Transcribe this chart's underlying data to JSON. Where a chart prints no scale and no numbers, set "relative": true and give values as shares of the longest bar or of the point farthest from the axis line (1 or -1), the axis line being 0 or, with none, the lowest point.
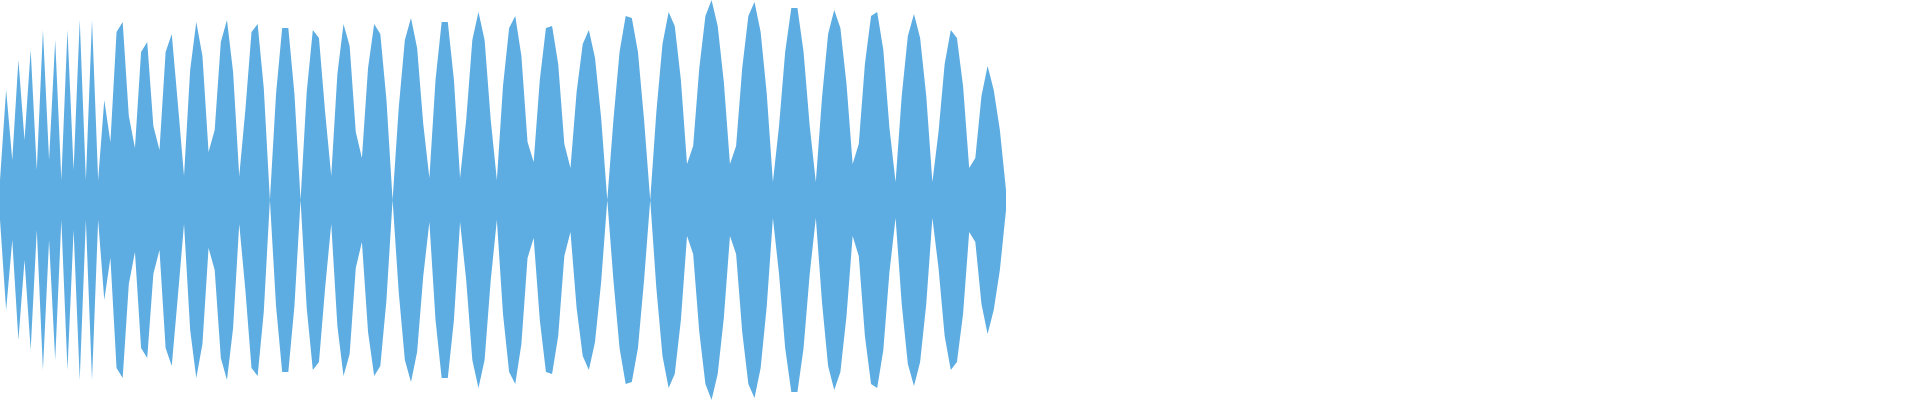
{
  "chart_data": {
    "type": "area",
    "relative": true,
    "legend": false,
    "marker": "none",
    "ref_lines": [
      {
        "axis": "y",
        "value": 0,
        "color": "#5dade2"
      }
    ],
    "categories": [
      null,
      null,
      null,
      null,
      null,
      null,
      null,
      null,
      null,
      null,
      null,
      null,
      null,
      null,
      null,
      null,
      null,
      null,
      null,
      null,
      null,
      null,
      null,
      null,
      null,
      null,
      null,
      null,
      null,
      null,
      null,
      null,
      null,
      null,
      null,
      null,
      null,
      null,
      null,
      null,
      null,
      null,
      null,
      null,
      null,
      null,
      null,
      null,
      null,
      null,
      null,
      null,
      null,
      null,
      null,
      null,
      null,
      null,
      null,
      null,
      null,
      null,
      null,
      null,
      null,
      null,
      null,
      null,
      null,
      null,
      null,
      null,
      null,
      null,
      null,
      null,
      null,
      null,
      null,
      null,
      null,
      null,
      null,
      null,
      null,
      null,
      null,
      null,
      null,
      null,
      null,
      null,
      null,
      null,
      null,
      null,
      null,
      null,
      null,
      null,
      null,
      null,
      null,
      null,
      null,
      null,
      null,
      null,
      null,
      null,
      null,
      null,
      null,
      null,
      null,
      null,
      null,
      null,
      null,
      null,
      null,
      null,
      null,
      null,
      null,
      null,
      null,
      null,
      null,
      null,
      null,
      null,
      null,
      null,
      null,
      null,
      null,
      null,
      null,
      null,
      null,
      null,
      null,
      null,
      null,
      null,
      null,
      null,
      null,
      null,
      null,
      null,
      null,
      null,
      null,
      null,
      null,
      null,
      null,
      null,
      null,
      null,
      null,
      null,
      null
    ],
    "series": [
      {
        "color": "#5dade2",
        "values": [
          0.1,
          0.55,
          0.2,
          0.7,
          0.3,
          0.75,
          0.15,
          0.85,
          0.2,
          0.8,
          0.1,
          0.85,
          0.15,
          0.9,
          0.1,
          0.9,
          0.1,
          0.5,
          0.29,
          0.84,
          0.89,
          0.42,
          0.26,
          0.74,
          0.79,
          0.37,
          0.25,
          0.74,
          0.83,
          0.48,
          0.12,
          0.65,
          0.89,
          0.72,
          0.24,
          0.35,
          0.79,
          0.9,
          0.64,
          0.12,
          0.45,
          0.84,
          0.88,
          0.56,
          0,
          0.53,
          0.86,
          0.86,
          0.53,
          0,
          0.54,
          0.85,
          0.81,
          0.44,
          0.12,
          0.63,
          0.88,
          0.77,
          0.34,
          0.21,
          0.66,
          0.88,
          0.83,
          0.5,
          0,
          0.46,
          0.8,
          0.91,
          0.76,
          0.38,
          0.11,
          0.6,
          0.89,
          0.89,
          0.6,
          0.11,
          0.4,
          0.8,
          0.94,
          0.8,
          0.4,
          0.1,
          0.57,
          0.86,
          0.92,
          0.72,
          0.29,
          0.19,
          0.6,
          0.86,
          0.87,
          0.68,
          0.28,
          0.16,
          0.54,
          0.78,
          0.85,
          0.71,
          0.41,
          0,
          0.4,
          0.74,
          0.92,
          0.91,
          0.74,
          0.4,
          0,
          0.44,
          0.78,
          0.94,
          0.87,
          0.6,
          0.18,
          0.27,
          0.66,
          0.92,
          1,
          0.87,
          0.59,
          0.18,
          0.27,
          0.66,
          0.92,
          0.99,
          0.84,
          0.53,
          0.09,
          0.37,
          0.74,
          0.96,
          0.96,
          0.74,
          0.37,
          0.09,
          0.51,
          0.83,
          0.95,
          0.86,
          0.58,
          0.18,
          0.28,
          0.68,
          0.92,
          0.94,
          0.75,
          0.36,
          0.09,
          0.52,
          0.82,
          0.93,
          0.81,
          0.52,
          0.09,
          0.34,
          0.68,
          0.85,
          0.81,
          0.57,
          0.16,
          0.21,
          0.52,
          0.67,
          0.55,
          0.35,
          0.05
        ]
      },
      {
        "color": "#5dade2",
        "values": [
          -0.1,
          -0.55,
          -0.2,
          -0.7,
          -0.3,
          -0.75,
          -0.15,
          -0.85,
          -0.2,
          -0.8,
          -0.1,
          -0.85,
          -0.15,
          -0.9,
          -0.1,
          -0.9,
          -0.1,
          -0.5,
          -0.29,
          -0.84,
          -0.89,
          -0.42,
          -0.26,
          -0.74,
          -0.79,
          -0.37,
          -0.25,
          -0.74,
          -0.83,
          -0.48,
          -0.12,
          -0.65,
          -0.89,
          -0.72,
          -0.24,
          -0.35,
          -0.79,
          -0.9,
          -0.64,
          -0.12,
          -0.45,
          -0.84,
          -0.88,
          -0.56,
          0,
          -0.53,
          -0.86,
          -0.86,
          -0.53,
          0,
          -0.54,
          -0.85,
          -0.81,
          -0.44,
          -0.12,
          -0.63,
          -0.88,
          -0.77,
          -0.34,
          -0.21,
          -0.66,
          -0.88,
          -0.83,
          -0.5,
          0,
          -0.46,
          -0.8,
          -0.91,
          -0.76,
          -0.38,
          -0.11,
          -0.6,
          -0.89,
          -0.89,
          -0.6,
          -0.11,
          -0.4,
          -0.8,
          -0.94,
          -0.8,
          -0.4,
          -0.1,
          -0.57,
          -0.86,
          -0.92,
          -0.72,
          -0.29,
          -0.19,
          -0.6,
          -0.86,
          -0.87,
          -0.68,
          -0.28,
          -0.16,
          -0.54,
          -0.78,
          -0.85,
          -0.71,
          -0.41,
          0,
          -0.4,
          -0.74,
          -0.92,
          -0.91,
          -0.74,
          -0.4,
          0,
          -0.44,
          -0.78,
          -0.94,
          -0.87,
          -0.6,
          -0.18,
          -0.27,
          -0.66,
          -0.92,
          -1,
          -0.87,
          -0.59,
          -0.18,
          -0.27,
          -0.66,
          -0.92,
          -0.99,
          -0.84,
          -0.53,
          -0.09,
          -0.37,
          -0.74,
          -0.96,
          -0.96,
          -0.74,
          -0.37,
          -0.09,
          -0.51,
          -0.83,
          -0.95,
          -0.86,
          -0.58,
          -0.18,
          -0.28,
          -0.68,
          -0.92,
          -0.94,
          -0.75,
          -0.36,
          -0.09,
          -0.52,
          -0.82,
          -0.93,
          -0.81,
          -0.52,
          -0.09,
          -0.34,
          -0.68,
          -0.85,
          -0.81,
          -0.57,
          -0.16,
          -0.21,
          -0.52,
          -0.67,
          -0.55,
          -0.35,
          -0.05
        ]
      }
    ]
  }
}
